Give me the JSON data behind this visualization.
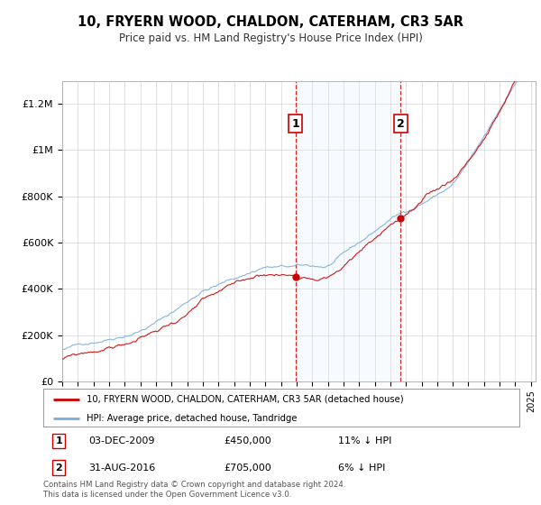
{
  "title": "10, FRYERN WOOD, CHALDON, CATERHAM, CR3 5AR",
  "subtitle": "Price paid vs. HM Land Registry's House Price Index (HPI)",
  "ylabel_ticks": [
    "£0",
    "£200K",
    "£400K",
    "£600K",
    "£800K",
    "£1M",
    "£1.2M"
  ],
  "ytick_values": [
    0,
    200000,
    400000,
    600000,
    800000,
    1000000,
    1200000
  ],
  "ylim": [
    0,
    1300000
  ],
  "x_start_year": 1995,
  "x_end_year": 2025,
  "sale1": {
    "date_label": "03-DEC-2009",
    "price": 450000,
    "marker_year": 2009.92
  },
  "sale2": {
    "date_label": "31-AUG-2016",
    "price": 705000,
    "marker_year": 2016.67
  },
  "legend_line1": "10, FRYERN WOOD, CHALDON, CATERHAM, CR3 5AR (detached house)",
  "legend_line2": "HPI: Average price, detached house, Tandridge",
  "footer": "Contains HM Land Registry data © Crown copyright and database right 2024.\nThis data is licensed under the Open Government Licence v3.0.",
  "table_row1": [
    "1",
    "03-DEC-2009",
    "£450,000",
    "11% ↓ HPI"
  ],
  "table_row2": [
    "2",
    "31-AUG-2016",
    "£705,000",
    "6% ↓ HPI"
  ],
  "hpi_color": "#7aade0",
  "price_color": "#cc0000",
  "shade_color": "#ddeeff",
  "annotation_box_color": "#cc0000",
  "ann_text_color": "#000000",
  "background_color": "#ffffff",
  "grid_color": "#cccccc"
}
